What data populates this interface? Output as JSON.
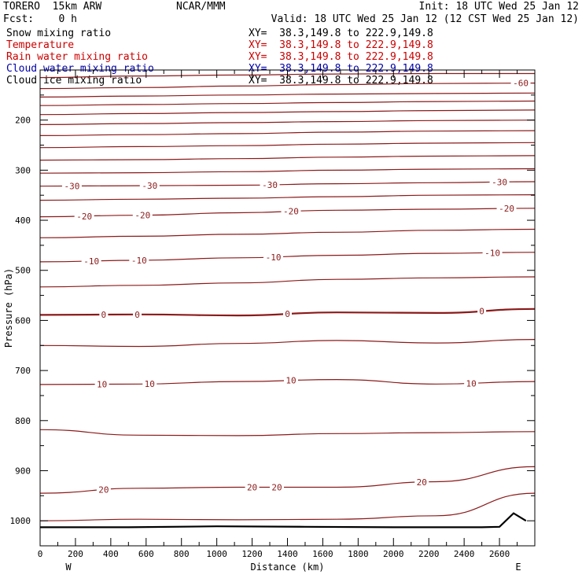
{
  "header": {
    "model": "TORERO  15km ARW",
    "org": "NCAR/MMM",
    "init": "Init: 18 UTC Wed 25 Jan 12",
    "fcst": "Fcst:    0 h",
    "valid": "Valid: 18 UTC Wed 25 Jan 12 (12 CST Wed 25 Jan 12)"
  },
  "fields": [
    {
      "name": "Snow mixing ratio",
      "xy": "XY=  38.3,149.8 to 222.9,149.8",
      "color": "#000000"
    },
    {
      "name": "Temperature",
      "xy": "XY=  38.3,149.8 to 222.9,149.8",
      "color": "#cc0000"
    },
    {
      "name": "Rain water mixing ratio",
      "xy": "XY=  38.3,149.8 to 222.9,149.8",
      "color": "#cc0000"
    },
    {
      "name": "Cloud water mixing ratio",
      "xy": "XY=  38.3,149.8 to 222.9,149.8",
      "color": "#0000aa"
    },
    {
      "name": "Cloud ice mixing ratio",
      "xy": "XY=  38.3,149.8 to 222.9,149.8",
      "color": "#000000"
    }
  ],
  "chart_data": {
    "type": "line",
    "xlabel": "Distance (km)",
    "ylabel": "Pressure (hPa)",
    "xlim": [
      0,
      2800
    ],
    "ylim": [
      1050,
      100
    ],
    "xticks": [
      0,
      200,
      400,
      600,
      800,
      1000,
      1200,
      1400,
      1600,
      1800,
      2000,
      2200,
      2400,
      2600
    ],
    "yticks": [
      200,
      300,
      400,
      500,
      600,
      700,
      800,
      900,
      1000
    ],
    "x_end_labels": {
      "left": "W",
      "right": "E"
    },
    "isotherm_color": "#8b1a1a",
    "isotherms": [
      {
        "p": [
          115,
          112,
          110,
          108,
          107,
          107
        ]
      },
      {
        "p": [
          137,
          135,
          132,
          129,
          127,
          126
        ],
        "labels": [
          {
            "x": 2720,
            "text": "-60"
          }
        ]
      },
      {
        "p": [
          154,
          152,
          150,
          148,
          147,
          146
        ]
      },
      {
        "p": [
          171,
          169,
          167,
          165,
          163,
          162
        ]
      },
      {
        "p": [
          189,
          187,
          185,
          183,
          181,
          180
        ]
      },
      {
        "p": [
          209,
          207,
          205,
          203,
          201,
          200
        ]
      },
      {
        "p": [
          231,
          229,
          227,
          224,
          222,
          221
        ]
      },
      {
        "p": [
          255,
          253,
          251,
          248,
          246,
          245
        ]
      },
      {
        "p": [
          280,
          279,
          277,
          274,
          272,
          271
        ]
      },
      {
        "p": [
          306,
          305,
          303,
          300,
          298,
          297
        ]
      },
      {
        "p": [
          332,
          331,
          330,
          327,
          325,
          323
        ],
        "labels": [
          {
            "x": 180,
            "text": "-30"
          },
          {
            "x": 620,
            "text": "-30"
          },
          {
            "x": 1300,
            "text": "-30"
          },
          {
            "x": 2600,
            "text": "-30"
          }
        ]
      },
      {
        "p": [
          360,
          358,
          356,
          353,
          350,
          349
        ]
      },
      {
        "p": [
          393,
          390,
          385,
          380,
          378,
          376
        ],
        "labels": [
          {
            "x": 250,
            "text": "-20"
          },
          {
            "x": 580,
            "text": "-20"
          },
          {
            "x": 1420,
            "text": "-20"
          },
          {
            "x": 2640,
            "text": "-20"
          }
        ]
      },
      {
        "p": [
          435,
          432,
          428,
          424,
          420,
          418
        ]
      },
      {
        "p": [
          483,
          480,
          475,
          470,
          466,
          464
        ],
        "labels": [
          {
            "x": 290,
            "text": "-10"
          },
          {
            "x": 560,
            "text": "-10"
          },
          {
            "x": 1320,
            "text": "-10"
          },
          {
            "x": 2560,
            "text": "-10"
          }
        ]
      },
      {
        "p": [
          533,
          530,
          525,
          518,
          515,
          513
        ]
      },
      {
        "p": [
          589,
          588,
          590,
          584,
          585,
          577
        ],
        "bold": true,
        "labels": [
          {
            "x": 360,
            "text": "0"
          },
          {
            "x": 550,
            "text": "0"
          },
          {
            "x": 1400,
            "text": "0"
          },
          {
            "x": 2500,
            "text": "0"
          }
        ]
      },
      {
        "p": [
          650,
          652,
          646,
          640,
          645,
          638
        ]
      },
      {
        "p": [
          728,
          727,
          722,
          718,
          727,
          722
        ],
        "labels": [
          {
            "x": 350,
            "text": "10"
          },
          {
            "x": 620,
            "text": "10"
          },
          {
            "x": 1420,
            "text": "10"
          },
          {
            "x": 2440,
            "text": "10"
          }
        ]
      },
      {
        "p": [
          818,
          829,
          830,
          826,
          824,
          822
        ]
      },
      {
        "p": [
          945,
          935,
          933,
          933,
          922,
          892
        ],
        "labels": [
          {
            "x": 360,
            "text": "20"
          },
          {
            "x": 1200,
            "text": "20"
          },
          {
            "x": 1340,
            "text": "20"
          },
          {
            "x": 2160,
            "text": "20"
          }
        ]
      },
      {
        "p": [
          1000,
          997,
          998,
          997,
          990,
          945
        ]
      }
    ],
    "terrain": {
      "x": [
        0,
        500,
        1000,
        1500,
        2000,
        2500,
        2600,
        2680,
        2750
      ],
      "p": [
        1013,
        1013,
        1011,
        1012,
        1013,
        1013,
        1012,
        985,
        1000
      ]
    }
  }
}
